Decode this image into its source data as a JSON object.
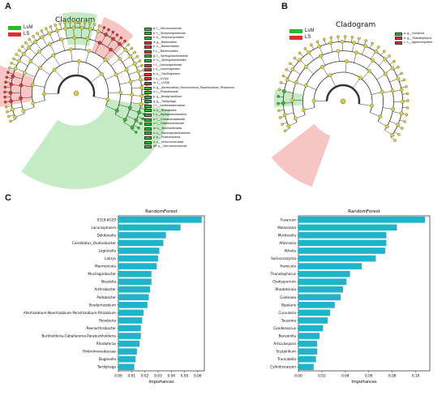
{
  "panels": {
    "a": {
      "letter": "A",
      "title": "Cladogram",
      "legend": [
        {
          "label": "LsM",
          "color": "#2db82d"
        },
        {
          "label": "LS",
          "color": "#e0302a"
        }
      ],
      "taxa": [
        {
          "label": "a: f__Micrococcaceae",
          "color": "#2db82d"
        },
        {
          "label": "b: f__Streptomycetaceae",
          "color": "#2db82d"
        },
        {
          "label": "c: o__Streptomycetales",
          "color": "#2db82d"
        },
        {
          "label": "d: g__Bacteroides",
          "color": "#e0302a"
        },
        {
          "label": "e: o__Bacteroidales",
          "color": "#e0302a"
        },
        {
          "label": "f: c__Bacteroidales",
          "color": "#e0302a"
        },
        {
          "label": "g: f__Sphingobacteriaceae",
          "color": "#2db82d"
        },
        {
          "label": "h: o__Sphingobacteriales",
          "color": "#2db82d"
        },
        {
          "label": "i: f__Lachnospiraceae",
          "color": "#e0302a"
        },
        {
          "label": "j: o__Lachnospirales",
          "color": "#e0302a"
        },
        {
          "label": "k: o__Oscillospirales",
          "color": "#e0302a"
        },
        {
          "label": "l: o__UVQ6",
          "color": "#e0302a"
        },
        {
          "label": "m: f__UVQ6",
          "color": "#e0302a"
        },
        {
          "label": "n: g__Allorhizobium_Neorhizobium_Pararhizobium_Rhizobium",
          "color": "#2db82d"
        },
        {
          "label": "o: f__Rhizobiaceae",
          "color": "#2db82d"
        },
        {
          "label": "p: g__Bradyrhizobium",
          "color": "#2db82d"
        },
        {
          "label": "q: g__Tardiphaga",
          "color": "#2db82d"
        },
        {
          "label": "r: f__Xanthobacteraceae",
          "color": "#2db82d"
        },
        {
          "label": "s: o__Rhizobiales",
          "color": "#2db82d"
        },
        {
          "label": "t: c__Alphaproteobacteria",
          "color": "#2db82d"
        },
        {
          "label": "u: f__Comamonadaceae",
          "color": "#2db82d"
        },
        {
          "label": "v: f__Oxalobacteraceae",
          "color": "#2db82d"
        },
        {
          "label": "w: o__Burkholderiales",
          "color": "#2db82d"
        },
        {
          "label": "x: c__Gammaproteobacteria",
          "color": "#2db82d"
        },
        {
          "label": "y: p__Proteobacteria",
          "color": "#2db82d"
        },
        {
          "label": "z: c__Verrucomicrobiae",
          "color": "#2db82d"
        },
        {
          "label": "a0: p__Verrucomicrobiota",
          "color": "#2db82d"
        }
      ]
    },
    "b": {
      "letter": "B",
      "title": "Cladogram",
      "legend": [
        {
          "label": "LsM",
          "color": "#2db82d"
        },
        {
          "label": "LS",
          "color": "#e0302a"
        }
      ],
      "taxa": [
        {
          "label": "a: g__Humicola",
          "color": "#2db82d"
        },
        {
          "label": "b: g__Thanatephorus",
          "color": "#e0302a"
        },
        {
          "label": "c: c__Agaricomycetes",
          "color": "#e0302a"
        }
      ]
    },
    "c": {
      "letter": "C"
    },
    "d": {
      "letter": "D"
    }
  },
  "chart_data": [
    {
      "type": "bar",
      "orientation": "horizontal",
      "title": "RandomForest",
      "xlabel": "Importances",
      "ylabel": "",
      "bar_color": "#1fb3cc",
      "xlim": [
        0,
        0.065
      ],
      "xticks": [
        "0.00",
        "0.01",
        "0.02",
        "0.03",
        "0.04",
        "0.05",
        "0.06"
      ],
      "categories": [
        "0319-6G20",
        "Lacunisphaera",
        "Dokdonella",
        "Candidatus_Ovatusbacter",
        "Legionella",
        "Labrys",
        "Marmoricola",
        "Mucilaginibacter",
        "Niastella",
        "Arthrobacter",
        "Pedobacter",
        "Bradyrhizobium",
        "Allorhizobium-Neorhizobium-Pararhizobium-Rhizobium",
        "Roseburia",
        "Paenarthrobacter",
        "Burkholderia-Caballeronia-Paraburkholderia",
        "Rhodoferax",
        "Fimbriimonadaceae",
        "Duganella",
        "Tardiphaga"
      ],
      "values": [
        0.063,
        0.047,
        0.036,
        0.034,
        0.031,
        0.03,
        0.029,
        0.025,
        0.025,
        0.024,
        0.023,
        0.022,
        0.019,
        0.018,
        0.017,
        0.017,
        0.016,
        0.014,
        0.013,
        0.012
      ]
    },
    {
      "type": "bar",
      "orientation": "horizontal",
      "title": "RandomForest",
      "xlabel": "Importances",
      "ylabel": "",
      "bar_color": "#1fb3cc",
      "xlim": [
        0,
        0.112
      ],
      "xticks": [
        "0.00",
        "0.02",
        "0.04",
        "0.06",
        "0.08",
        "0.10"
      ],
      "categories": [
        "Fusarium",
        "Malassezia",
        "Mortierella",
        "Alternaria",
        "Athelia",
        "Solicoccozyma",
        "Humicola",
        "Thanatephorus",
        "Cladosporium",
        "Rhodotorula",
        "Codinaea",
        "Bipolaris",
        "Curvularia",
        "Tausonia",
        "Condenascus",
        "Bensonilla",
        "Articulospora",
        "Scytalidium",
        "Truncatella",
        "Cylindrocarpon"
      ],
      "values": [
        0.108,
        0.084,
        0.075,
        0.075,
        0.074,
        0.066,
        0.054,
        0.044,
        0.041,
        0.038,
        0.036,
        0.031,
        0.027,
        0.025,
        0.021,
        0.018,
        0.016,
        0.016,
        0.015,
        0.013
      ]
    }
  ]
}
